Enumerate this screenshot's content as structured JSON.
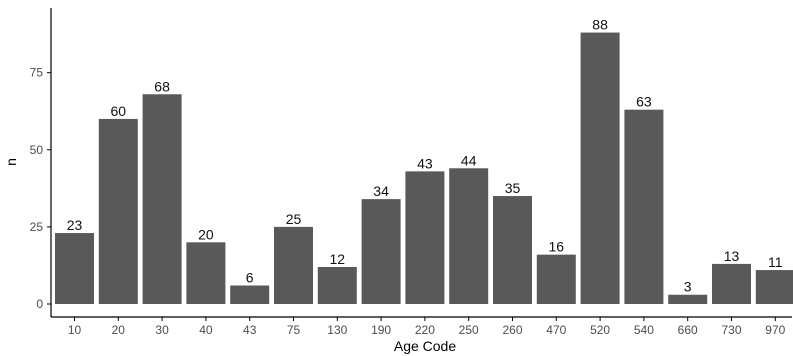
{
  "colors": {
    "background": "#ffffff",
    "bar": "#595959",
    "axis_line": "#000000",
    "tick_text": "#4d4d4d",
    "data_label": "#111111",
    "axis_title": "#000000"
  },
  "chart_data": {
    "type": "bar",
    "title": "",
    "subtitle": "",
    "xlabel": "Age Code",
    "ylabel": "n",
    "categories": [
      "10",
      "20",
      "30",
      "40",
      "43",
      "75",
      "130",
      "190",
      "220",
      "250",
      "260",
      "470",
      "520",
      "540",
      "660",
      "730",
      "970"
    ],
    "values": [
      23,
      60,
      68,
      20,
      6,
      25,
      12,
      34,
      43,
      44,
      35,
      16,
      88,
      63,
      3,
      13,
      11
    ],
    "ylim": [
      0,
      90
    ],
    "yticks": [
      0,
      25,
      50,
      75
    ],
    "grid": false,
    "legend": "none",
    "data_labels": true,
    "bar_color": "#595959"
  }
}
